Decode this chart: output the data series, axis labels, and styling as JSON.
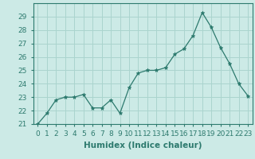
{
  "x": [
    0,
    1,
    2,
    3,
    4,
    5,
    6,
    7,
    8,
    9,
    10,
    11,
    12,
    13,
    14,
    15,
    16,
    17,
    18,
    19,
    20,
    21,
    22,
    23
  ],
  "y": [
    21,
    21.8,
    22.8,
    23.0,
    23.0,
    23.2,
    22.2,
    22.2,
    22.8,
    21.8,
    23.7,
    24.8,
    25.0,
    25.0,
    25.2,
    26.2,
    26.6,
    27.6,
    29.3,
    28.2,
    26.7,
    25.5,
    24.0,
    23.1
  ],
  "line_color": "#2d7a6e",
  "marker": "*",
  "marker_size": 3.5,
  "bg_color": "#cceae6",
  "grid_color": "#aad4ce",
  "xlabel": "Humidex (Indice chaleur)",
  "ylim": [
    21,
    30
  ],
  "xlim": [
    -0.5,
    23.5
  ],
  "yticks": [
    21,
    22,
    23,
    24,
    25,
    26,
    27,
    28,
    29
  ],
  "xtick_labels": [
    "0",
    "1",
    "2",
    "3",
    "4",
    "5",
    "6",
    "7",
    "8",
    "9",
    "10",
    "11",
    "12",
    "13",
    "14",
    "15",
    "16",
    "17",
    "18",
    "19",
    "20",
    "21",
    "22",
    "23"
  ],
  "label_fontsize": 7.5,
  "tick_fontsize": 6.5
}
